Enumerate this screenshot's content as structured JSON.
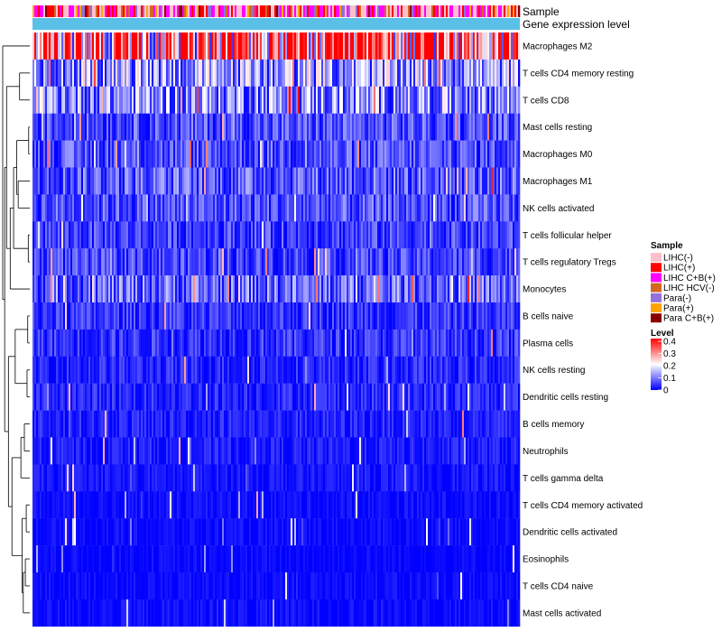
{
  "chart_data": {
    "type": "heatmap",
    "title": "",
    "annotation_tracks": [
      {
        "name": "Sample",
        "type": "categorical"
      },
      {
        "name": "Gene expression level",
        "type": "continuous"
      }
    ],
    "rows": [
      {
        "label": "Macrophages M2",
        "mean": 0.3
      },
      {
        "label": "T cells CD4 memory resting",
        "mean": 0.12
      },
      {
        "label": "T cells CD8",
        "mean": 0.11
      },
      {
        "label": "Mast cells resting",
        "mean": 0.06
      },
      {
        "label": "Macrophages M0",
        "mean": 0.06
      },
      {
        "label": "Macrophages M1",
        "mean": 0.07
      },
      {
        "label": "NK cells activated",
        "mean": 0.06
      },
      {
        "label": "T cells follicular helper",
        "mean": 0.05
      },
      {
        "label": "T cells regulatory  Tregs",
        "mean": 0.05
      },
      {
        "label": "Monocytes",
        "mean": 0.08
      },
      {
        "label": "B cells naive",
        "mean": 0.04
      },
      {
        "label": "Plasma cells",
        "mean": 0.04
      },
      {
        "label": "NK cells resting",
        "mean": 0.03
      },
      {
        "label": "Dendritic cells resting",
        "mean": 0.03
      },
      {
        "label": "B cells memory",
        "mean": 0.025
      },
      {
        "label": "Neutrophils",
        "mean": 0.02
      },
      {
        "label": "T cells gamma delta",
        "mean": 0.015
      },
      {
        "label": "T cells CD4 memory activated",
        "mean": 0.01
      },
      {
        "label": "Dendritic cells activated",
        "mean": 0.008
      },
      {
        "label": "Eosinophils",
        "mean": 0.006
      },
      {
        "label": "T cells CD4 naive",
        "mean": 0.008
      },
      {
        "label": "Mast cells activated",
        "mean": 0.01
      }
    ],
    "legend_sample": {
      "title": "Sample",
      "entries": [
        {
          "label": "LIHC(-)",
          "color": "#ffc0cb"
        },
        {
          "label": "LIHC(+)",
          "color": "#ff0000"
        },
        {
          "label": "LIHC C+B(+)",
          "color": "#ff00ff"
        },
        {
          "label": "LIHC HCV(-)",
          "color": "#d2691e"
        },
        {
          "label": "Para(-)",
          "color": "#9370db"
        },
        {
          "label": "Para(+)",
          "color": "#ffa500"
        },
        {
          "label": "Para C+B(+)",
          "color": "#8b0000"
        }
      ]
    },
    "legend_level": {
      "title": "Level",
      "ticks": [
        "0.4",
        "0.3",
        "0.2",
        "0.1",
        "0"
      ],
      "range": [
        0,
        0.4
      ],
      "colors": [
        "#0000ff",
        "#ffffff",
        "#ff0000"
      ]
    },
    "expression_track_color": "#5bc0e8"
  }
}
